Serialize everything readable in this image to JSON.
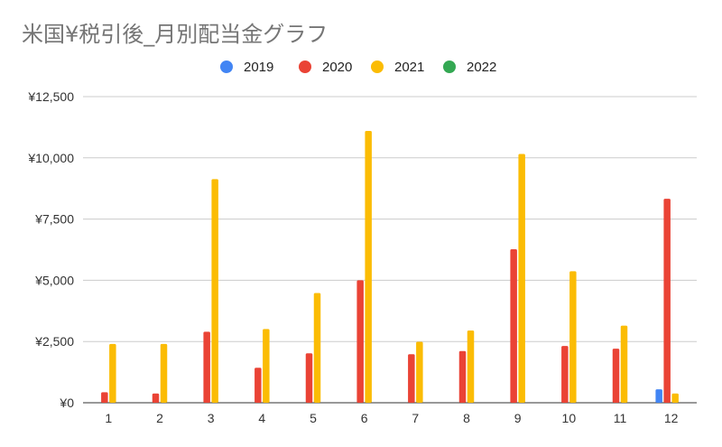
{
  "chart_data": {
    "type": "bar",
    "title": "米国¥税引後_月別配当金グラフ",
    "categories": [
      "1",
      "2",
      "3",
      "4",
      "5",
      "6",
      "7",
      "8",
      "9",
      "10",
      "11",
      "12"
    ],
    "series": [
      {
        "name": "2019",
        "color": "#4285f4",
        "values": [
          0,
          0,
          0,
          0,
          0,
          0,
          0,
          0,
          0,
          0,
          0,
          550
        ]
      },
      {
        "name": "2020",
        "color": "#ea4335",
        "values": [
          430,
          380,
          2900,
          1430,
          2020,
          5000,
          1980,
          2110,
          6270,
          2320,
          2210,
          8330
        ]
      },
      {
        "name": "2021",
        "color": "#fbbc04",
        "values": [
          2400,
          2400,
          9130,
          3010,
          4480,
          11100,
          2490,
          2950,
          10160,
          5370,
          3150,
          380
        ]
      },
      {
        "name": "2022",
        "color": "#34a853",
        "values": [
          0,
          0,
          0,
          0,
          0,
          0,
          0,
          0,
          0,
          0,
          0,
          0
        ]
      }
    ],
    "yticks": [
      "¥0",
      "¥2,500",
      "¥5,000",
      "¥7,500",
      "¥10,000",
      "¥12,500"
    ],
    "ylim": [
      0,
      12500
    ],
    "grid": true,
    "legend_position": "top"
  }
}
